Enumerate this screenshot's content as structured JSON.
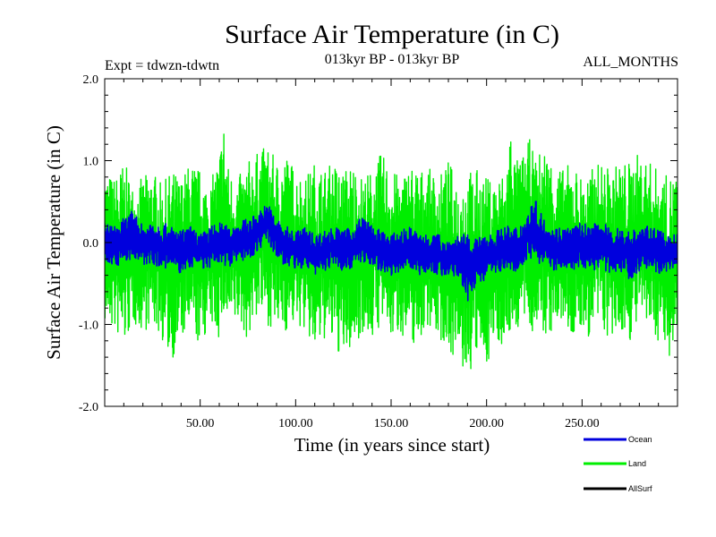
{
  "chart_data": {
    "type": "line",
    "title": "Surface Air Temperature (in C)",
    "subtitle_left": "Expt = tdwzn-tdwtn",
    "subtitle_center": "013kyr BP - 013kyr BP",
    "subtitle_right": "ALL_MONTHS",
    "xlabel": "Time (in years since start)",
    "ylabel": "Surface Air Temperature (in C)",
    "xlim": [
      0,
      300
    ],
    "ylim": [
      -2.0,
      2.0
    ],
    "x_ticks": [
      50,
      100,
      150,
      200,
      250
    ],
    "x_tick_labels": [
      "50.00",
      "100.00",
      "150.00",
      "200.00",
      "250.00"
    ],
    "y_ticks": [
      -2.0,
      -1.0,
      0.0,
      1.0,
      2.0
    ],
    "y_tick_labels": [
      "-2.0",
      "-1.0",
      "0.0",
      "1.0",
      "2.0"
    ],
    "zero_line": true,
    "grid": false,
    "legend_position": "bottom-right",
    "series": [
      {
        "name": "Land",
        "color": "#00ee00",
        "x": [
          0,
          5,
          10,
          15,
          20,
          25,
          30,
          35,
          40,
          45,
          50,
          55,
          60,
          62,
          65,
          70,
          75,
          80,
          85,
          90,
          95,
          100,
          105,
          110,
          115,
          120,
          125,
          130,
          135,
          140,
          145,
          150,
          155,
          160,
          165,
          170,
          175,
          180,
          185,
          190,
          195,
          200,
          205,
          210,
          213,
          215,
          220,
          223,
          225,
          230,
          235,
          240,
          245,
          250,
          255,
          260,
          265,
          270,
          275,
          280,
          285,
          290,
          295,
          299
        ],
        "max": [
          0.9,
          0.8,
          1.0,
          0.7,
          0.8,
          0.9,
          0.7,
          0.9,
          0.8,
          1.0,
          0.9,
          0.7,
          1.1,
          1.6,
          0.9,
          0.8,
          1.0,
          1.1,
          1.2,
          1.0,
          1.1,
          0.9,
          0.8,
          1.0,
          0.9,
          1.0,
          0.9,
          1.0,
          0.8,
          0.9,
          1.1,
          0.9,
          0.8,
          1.0,
          0.9,
          0.9,
          0.8,
          1.0,
          0.8,
          0.9,
          0.9,
          0.8,
          0.8,
          0.9,
          1.55,
          1.0,
          1.1,
          1.3,
          1.0,
          1.2,
          1.0,
          0.9,
          1.0,
          0.8,
          0.9,
          1.0,
          0.9,
          1.0,
          1.0,
          1.1,
          1.0,
          0.9,
          0.8,
          0.9
        ],
        "min": [
          -1.0,
          -1.1,
          -1.3,
          -1.0,
          -1.1,
          -1.0,
          -1.2,
          -1.45,
          -1.2,
          -1.1,
          -1.3,
          -1.0,
          -1.2,
          -1.0,
          -1.1,
          -1.0,
          -1.2,
          -0.9,
          -1.0,
          -1.1,
          -1.1,
          -1.0,
          -1.1,
          -1.4,
          -1.2,
          -1.3,
          -1.45,
          -1.3,
          -1.1,
          -1.2,
          -1.0,
          -1.2,
          -1.1,
          -1.3,
          -1.2,
          -1.0,
          -1.2,
          -1.3,
          -1.5,
          -1.7,
          -1.4,
          -1.5,
          -1.2,
          -1.3,
          -1.1,
          -1.1,
          -1.0,
          -1.2,
          -1.0,
          -1.2,
          -1.1,
          -1.0,
          -1.2,
          -1.1,
          -1.2,
          -1.0,
          -1.3,
          -1.1,
          -1.2,
          -1.0,
          -1.1,
          -1.2,
          -1.4,
          -1.3
        ]
      },
      {
        "name": "Ocean",
        "color": "#0000dd",
        "x": [
          0,
          5,
          10,
          15,
          20,
          25,
          30,
          35,
          40,
          45,
          50,
          55,
          60,
          65,
          70,
          75,
          80,
          85,
          90,
          95,
          100,
          105,
          110,
          115,
          120,
          125,
          130,
          135,
          140,
          145,
          150,
          155,
          160,
          165,
          170,
          175,
          180,
          185,
          190,
          195,
          200,
          205,
          210,
          215,
          220,
          225,
          230,
          235,
          240,
          245,
          250,
          255,
          260,
          265,
          270,
          275,
          280,
          285,
          290,
          295,
          299
        ],
        "max": [
          0.25,
          0.2,
          0.3,
          0.4,
          0.2,
          0.3,
          0.25,
          0.2,
          0.15,
          0.2,
          0.1,
          0.2,
          0.25,
          0.2,
          0.25,
          0.3,
          0.35,
          0.5,
          0.3,
          0.2,
          0.15,
          0.2,
          0.1,
          0.15,
          0.2,
          0.15,
          0.2,
          0.35,
          0.2,
          0.15,
          0.1,
          0.15,
          0.2,
          0.1,
          0.15,
          0.1,
          0.05,
          0.1,
          0.1,
          0.05,
          0.1,
          0.15,
          0.2,
          0.2,
          0.3,
          0.55,
          0.3,
          0.2,
          0.2,
          0.2,
          0.25,
          0.2,
          0.3,
          0.15,
          0.2,
          0.15,
          0.2,
          0.2,
          0.15,
          0.1,
          0.1
        ],
        "min": [
          -0.2,
          -0.3,
          -0.25,
          -0.2,
          -0.3,
          -0.25,
          -0.35,
          -0.3,
          -0.4,
          -0.3,
          -0.3,
          -0.35,
          -0.25,
          -0.3,
          -0.2,
          -0.25,
          -0.1,
          0.0,
          -0.2,
          -0.3,
          -0.35,
          -0.3,
          -0.4,
          -0.35,
          -0.3,
          -0.35,
          -0.3,
          -0.25,
          -0.3,
          -0.35,
          -0.4,
          -0.35,
          -0.3,
          -0.4,
          -0.35,
          -0.4,
          -0.45,
          -0.4,
          -0.75,
          -0.5,
          -0.45,
          -0.4,
          -0.3,
          -0.35,
          -0.25,
          -0.2,
          -0.3,
          -0.35,
          -0.3,
          -0.35,
          -0.3,
          -0.35,
          -0.3,
          -0.4,
          -0.35,
          -0.45,
          -0.35,
          -0.3,
          -0.4,
          -0.35,
          -0.3
        ]
      },
      {
        "name": "AllSurf",
        "color": "#000000"
      }
    ]
  }
}
